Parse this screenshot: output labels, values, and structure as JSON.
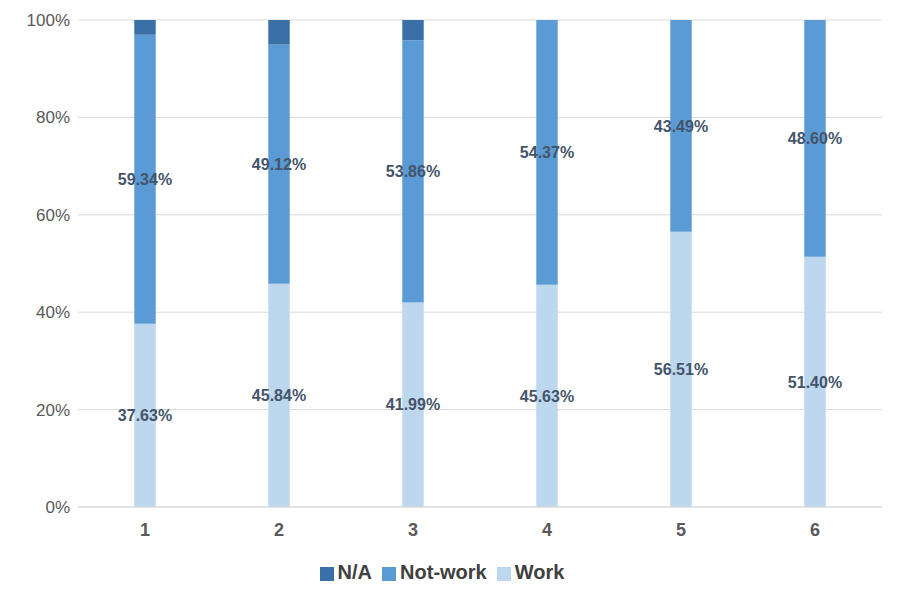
{
  "chart_data": {
    "type": "bar",
    "stacked": true,
    "data_labels": true,
    "grid": true,
    "legend": "bottom",
    "categories": [
      "1",
      "2",
      "3",
      "4",
      "5",
      "6"
    ],
    "ylim": [
      0,
      100
    ],
    "yticks": [
      {
        "value": 0,
        "label": "0%"
      },
      {
        "value": 20,
        "label": "20%"
      },
      {
        "value": 40,
        "label": "40%"
      },
      {
        "value": 60,
        "label": "60%"
      },
      {
        "value": 80,
        "label": "80%"
      },
      {
        "value": 100,
        "label": "100%"
      }
    ],
    "series": [
      {
        "name": "Work",
        "color": "#bdd7ee",
        "values": [
          37.63,
          45.84,
          41.99,
          45.63,
          56.51,
          51.4
        ],
        "value_labels": [
          "37.63%",
          "45.84%",
          "41.99%",
          "45.63%",
          "56.51%",
          "51.40%"
        ]
      },
      {
        "name": "Not-work",
        "color": "#5b9bd5",
        "values": [
          59.34,
          49.12,
          53.86,
          54.37,
          43.49,
          48.6
        ],
        "value_labels": [
          "59.34%",
          "49.12%",
          "53.86%",
          "54.37%",
          "43.49%",
          "48.60%"
        ]
      },
      {
        "name": "N/A",
        "color": "#3a6fa8",
        "values": [
          3.03,
          5.04,
          4.15,
          0,
          0,
          0
        ]
      }
    ]
  }
}
